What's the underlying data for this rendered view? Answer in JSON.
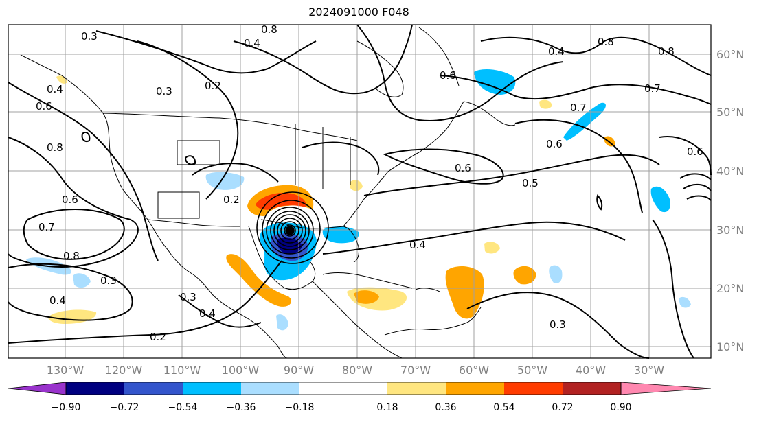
{
  "title": "2024091000 F048",
  "lat_labels": [
    "60°N",
    "50°N",
    "40°N",
    "30°N",
    "20°N",
    "10°N"
  ],
  "lon_labels": [
    "130°W",
    "120°W",
    "110°W",
    "100°W",
    "90°W",
    "80°W",
    "70°W",
    "60°W",
    "50°W",
    "40°W",
    "30°W"
  ],
  "colorbar": {
    "ticks": [
      "−0.90",
      "−0.72",
      "−0.54",
      "−0.36",
      "−0.18",
      "0.18",
      "0.36",
      "0.54",
      "0.72",
      "0.90"
    ],
    "colors": [
      "#9933cc",
      "#000080",
      "#3355cc",
      "#00bfff",
      "#aadeff",
      "#ffffff",
      "#ffe680",
      "#ffa500",
      "#ff3c00",
      "#b22222",
      "#ff88b0"
    ]
  },
  "contour_labels": [
    "0.3",
    "0.4",
    "0.8",
    "0.3",
    "0.2",
    "0.4",
    "0.6",
    "0.8",
    "0.6",
    "0.7",
    "0.8",
    "0.4",
    "0.2",
    "0.3",
    "0.6",
    "0.5",
    "0.6",
    "0.7",
    "0.6",
    "0.7",
    "0.6",
    "0.3",
    "0.2",
    "0.4",
    "0.3",
    "0.4",
    "0.8",
    "0.4",
    "0.8"
  ],
  "map_colors": {
    "grid": "#a0a0a0",
    "contour": "#000000",
    "coast": "#000000",
    "pos_light": "#ffe680",
    "pos_mid": "#ffa500",
    "pos_strong": "#ff3c00",
    "neg_light": "#aadeff",
    "neg_mid": "#00bfff",
    "neg_strong": "#3355cc",
    "neg_dark": "#000080"
  }
}
